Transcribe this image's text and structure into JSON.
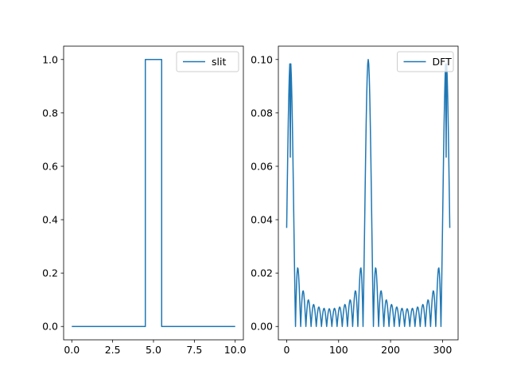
{
  "chart_data": [
    {
      "type": "line",
      "title": "",
      "xlabel": "",
      "ylabel": "",
      "xlim": [
        -0.5,
        10.5
      ],
      "ylim": [
        -0.05,
        1.05
      ],
      "xticks": [
        0,
        2.5,
        5,
        7.5,
        10
      ],
      "xtick_labels": [
        "0.0",
        "2.5",
        "5.0",
        "7.5",
        "10.0"
      ],
      "yticks": [
        0,
        0.2,
        0.4,
        0.6,
        0.8,
        1.0
      ],
      "ytick_labels": [
        "0.0",
        "0.2",
        "0.4",
        "0.6",
        "0.8",
        "1.0"
      ],
      "legend": "upper right",
      "grid": false,
      "series": [
        {
          "name": "slit",
          "color": "#1f77b4",
          "x": [
            0,
            4.5,
            4.5,
            5.5,
            5.5,
            10
          ],
          "y": [
            0,
            0,
            1,
            1,
            0,
            0
          ]
        }
      ]
    },
    {
      "type": "line",
      "title": "",
      "xlabel": "",
      "ylabel": "",
      "xlim": [
        -16,
        330
      ],
      "ylim": [
        -0.005,
        0.105
      ],
      "xticks": [
        0,
        100,
        200,
        300
      ],
      "xtick_labels": [
        "0",
        "100",
        "200",
        "300"
      ],
      "yticks": [
        0,
        0.02,
        0.04,
        0.06,
        0.08,
        0.1
      ],
      "ytick_labels": [
        "0.00",
        "0.02",
        "0.04",
        "0.06",
        "0.08",
        "0.10"
      ],
      "legend": "upper right",
      "grid": false,
      "series": [
        {
          "name": "DFT",
          "color": "#1f77b4",
          "x_range": [
            0,
            314
          ],
          "peak_x": 157,
          "peak_y": 0.1,
          "first_null_offset": 10,
          "description_values": "sinc-like magnitude spectrum of the slit"
        }
      ]
    }
  ]
}
